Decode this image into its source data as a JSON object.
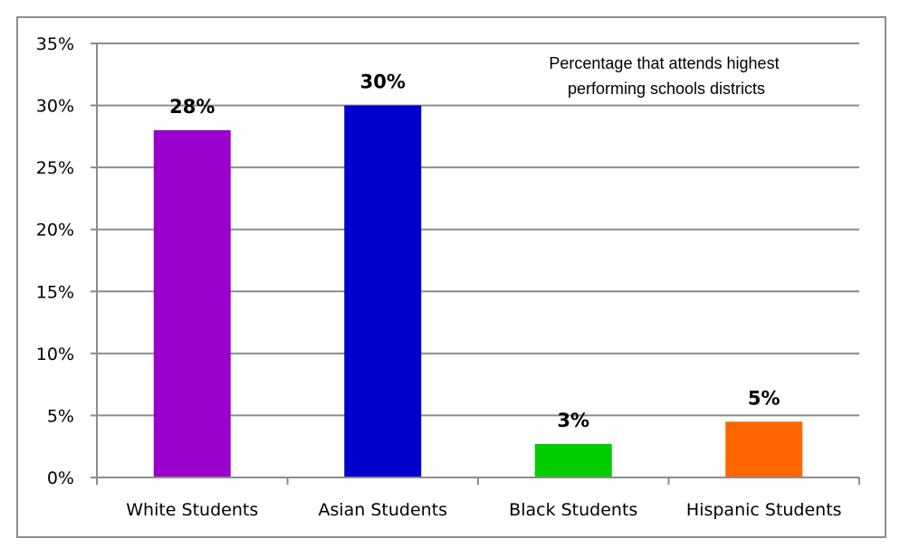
{
  "chart_data": {
    "type": "bar",
    "title": "Percentage that attends highest performing schools districts",
    "title_lines": [
      "Percentage that attends highest",
      "performing schools districts"
    ],
    "categories": [
      "White Students",
      "Asian Students",
      "Black Students",
      "Hispanic Students"
    ],
    "values": [
      28,
      30,
      2.7,
      4.5
    ],
    "data_labels": [
      "28%",
      "30%",
      "3%",
      "5%"
    ],
    "colors": [
      "#9900CC",
      "#0000CC",
      "#00CC00",
      "#FF6600"
    ],
    "ylim": [
      0,
      35
    ],
    "yticks": [
      "0%",
      "5%",
      "10%",
      "15%",
      "20%",
      "25%",
      "30%",
      "35%"
    ],
    "ytick_values": [
      0,
      5,
      10,
      15,
      20,
      25,
      30,
      35
    ],
    "grid": true,
    "legend": "none",
    "xlabel": "",
    "ylabel": ""
  }
}
